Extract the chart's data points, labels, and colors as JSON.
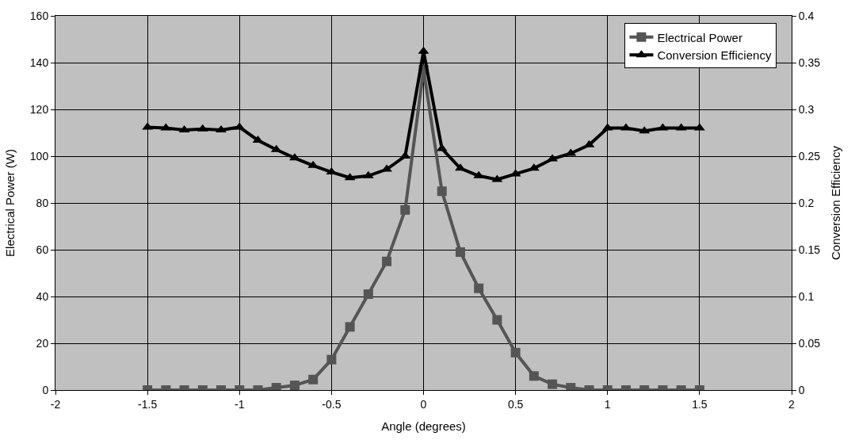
{
  "chart_data": {
    "type": "line",
    "xlabel": "Angle (degrees)",
    "ylabel": "Electrical Power (W)",
    "y2label": "Conversion Efficiency",
    "x": [
      -1.5,
      -1.4,
      -1.3,
      -1.2,
      -1.1,
      -1.0,
      -0.9,
      -0.8,
      -0.7,
      -0.6,
      -0.5,
      -0.4,
      -0.3,
      -0.2,
      -0.1,
      0,
      0.1,
      0.2,
      0.3,
      0.4,
      0.5,
      0.6,
      0.7,
      0.8,
      0.9,
      1.0,
      1.1,
      1.2,
      1.3,
      1.4,
      1.5
    ],
    "series": [
      {
        "name": "Electrical Power",
        "color": "#555555",
        "marker": "square",
        "values": [
          0,
          0,
          0,
          0,
          0,
          0,
          0,
          1,
          2,
          4.5,
          13,
          27,
          41,
          55,
          77,
          137,
          85,
          59,
          43.5,
          30,
          16,
          6,
          2.5,
          1,
          0,
          0,
          0,
          0,
          0,
          0,
          0
        ]
      },
      {
        "name": "Conversion Efficiency",
        "color": "#000000",
        "marker": "triangle",
        "axis": "y2",
        "values": [
          0.281,
          0.28,
          0.278,
          0.279,
          0.278,
          0.281,
          0.267,
          0.257,
          0.248,
          0.24,
          0.233,
          0.227,
          0.229,
          0.236,
          0.25,
          0.362,
          0.258,
          0.237,
          0.229,
          0.225,
          0.231,
          0.237,
          0.247,
          0.253,
          0.262,
          0.28,
          0.28,
          0.277,
          0.28,
          0.28,
          0.28
        ]
      }
    ],
    "xlim": [
      -2,
      2
    ],
    "xticks": [
      -2,
      -1.5,
      -1,
      -0.5,
      0,
      0.5,
      1,
      1.5,
      2
    ],
    "ylim": [
      0,
      160
    ],
    "yticks": [
      0,
      20,
      40,
      60,
      80,
      100,
      120,
      140,
      160
    ],
    "y2lim": [
      0,
      0.4
    ],
    "y2ticks": [
      0,
      0.05,
      0.1,
      0.15,
      0.2,
      0.25,
      0.3,
      0.35,
      0.4
    ],
    "grid": true,
    "legend": "top right",
    "line_style": "solid"
  }
}
